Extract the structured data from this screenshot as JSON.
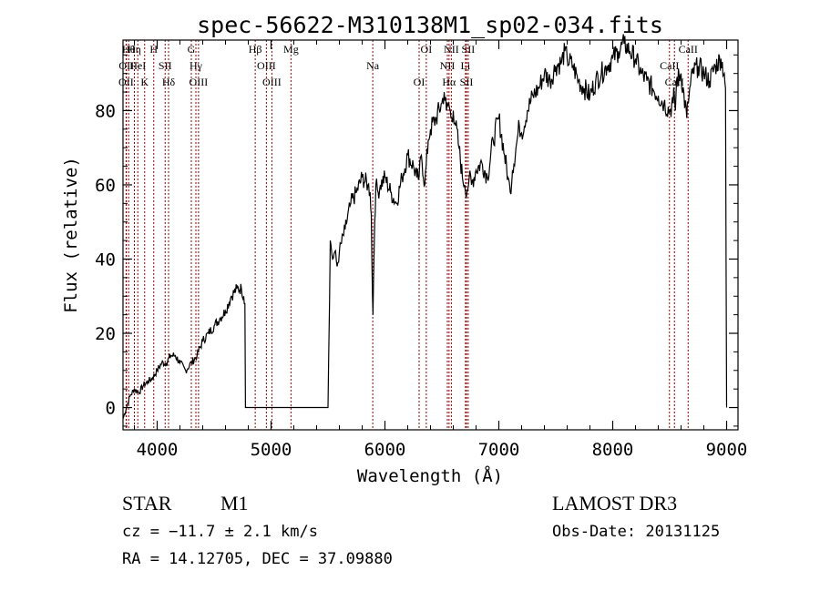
{
  "chart_data": {
    "type": "line",
    "title": "spec-56622-M310138M1_sp02-034.fits",
    "xlabel": "Wavelength (Å)",
    "ylabel": "Flux (relative)",
    "xlim": [
      3700,
      9100
    ],
    "ylim": [
      -6,
      99
    ],
    "x_ticks": [
      4000,
      5000,
      6000,
      7000,
      8000,
      9000
    ],
    "y_ticks": [
      0,
      20,
      40,
      60,
      80
    ],
    "x_tick_labels": [
      "4000",
      "5000",
      "6000",
      "7000",
      "8000",
      "9000"
    ],
    "y_tick_labels": [
      "0",
      "20",
      "40",
      "60",
      "80"
    ],
    "series": [
      {
        "name": "flux",
        "color": "#000000",
        "x": [
          3700,
          3730,
          3760,
          3800,
          3840,
          3880,
          3920,
          3960,
          4000,
          4040,
          4080,
          4120,
          4160,
          4200,
          4250,
          4300,
          4350,
          4400,
          4450,
          4500,
          4550,
          4600,
          4650,
          4700,
          4740,
          4760,
          4770,
          4775,
          4800,
          5000,
          5200,
          5400,
          5500,
          5520,
          5540,
          5560,
          5580,
          5600,
          5650,
          5700,
          5750,
          5800,
          5850,
          5870,
          5880,
          5890,
          5895,
          5900,
          5910,
          5920,
          5940,
          5960,
          6000,
          6050,
          6100,
          6150,
          6200,
          6250,
          6280,
          6300,
          6320,
          6350,
          6380,
          6400,
          6450,
          6500,
          6520,
          6540,
          6560,
          6580,
          6600,
          6620,
          6650,
          6680,
          6700,
          6720,
          6740,
          6760,
          6800,
          6850,
          6900,
          6950,
          7000,
          7050,
          7080,
          7100,
          7120,
          7150,
          7180,
          7200,
          7250,
          7300,
          7350,
          7400,
          7450,
          7500,
          7550,
          7580,
          7600,
          7650,
          7700,
          7750,
          7800,
          7850,
          7900,
          7950,
          8000,
          8050,
          8100,
          8150,
          8200,
          8250,
          8300,
          8350,
          8400,
          8450,
          8500,
          8530,
          8540,
          8550,
          8560,
          8600,
          8650,
          8660,
          8670,
          8700,
          8750,
          8800,
          8850,
          8900,
          8950,
          8980,
          8990,
          8995,
          9000
        ],
        "values": [
          -3,
          0,
          3,
          5,
          4,
          6,
          7,
          8,
          10,
          12,
          12,
          14,
          14,
          12,
          10,
          12,
          14,
          18,
          20,
          22,
          24,
          26,
          30,
          32,
          32,
          30,
          28,
          0,
          0,
          0,
          0,
          0,
          0,
          45,
          40,
          42,
          38,
          42,
          48,
          55,
          58,
          62,
          60,
          58,
          52,
          30,
          25,
          35,
          50,
          60,
          58,
          60,
          62,
          58,
          55,
          62,
          68,
          65,
          62,
          62,
          68,
          60,
          72,
          75,
          78,
          82,
          85,
          80,
          82,
          78,
          80,
          76,
          70,
          62,
          60,
          58,
          62,
          60,
          64,
          66,
          62,
          72,
          78,
          68,
          62,
          58,
          64,
          70,
          76,
          74,
          80,
          84,
          86,
          90,
          88,
          92,
          93,
          96,
          94,
          92,
          88,
          86,
          84,
          88,
          90,
          92,
          94,
          96,
          98,
          96,
          94,
          90,
          88,
          86,
          84,
          82,
          80,
          82,
          85,
          80,
          88,
          90,
          78,
          82,
          84,
          90,
          92,
          90,
          88,
          92,
          94,
          90,
          86,
          40,
          0
        ]
      }
    ],
    "lines": [
      {
        "x": 3750,
        "label": "Hθ"
      },
      {
        "x": 3730,
        "label": "OII"
      },
      {
        "x": 3727,
        "label": "OII"
      },
      {
        "x": 3800,
        "label": "Hη"
      },
      {
        "x": 3830,
        "label": "HeI"
      },
      {
        "x": 3890,
        "label": "K"
      },
      {
        "x": 3970,
        "label": "H"
      },
      {
        "x": 4070,
        "label": "SII"
      },
      {
        "x": 4100,
        "label": "Hδ"
      },
      {
        "x": 4300,
        "label": "G"
      },
      {
        "x": 4340,
        "label": "Hγ"
      },
      {
        "x": 4363,
        "label": "OIII"
      },
      {
        "x": 4861,
        "label": "Hβ"
      },
      {
        "x": 4959,
        "label": "OIII"
      },
      {
        "x": 5007,
        "label": "OIII"
      },
      {
        "x": 5175,
        "label": "Mg"
      },
      {
        "x": 5893,
        "label": "Na"
      },
      {
        "x": 6300,
        "label": "OI"
      },
      {
        "x": 6363,
        "label": "OI"
      },
      {
        "x": 6548,
        "label": "NII"
      },
      {
        "x": 6563,
        "label": "Hα"
      },
      {
        "x": 6583,
        "label": "NII"
      },
      {
        "x": 6707,
        "label": "Li"
      },
      {
        "x": 6716,
        "label": "SII"
      },
      {
        "x": 6731,
        "label": "SII"
      },
      {
        "x": 8498,
        "label": "CaII"
      },
      {
        "x": 8542,
        "label": "CaII"
      },
      {
        "x": 8662,
        "label": "CaII"
      }
    ],
    "line_color": "#990000"
  },
  "footer": {
    "object_class": "STAR",
    "subclass": "M1",
    "survey": "LAMOST DR3",
    "cz": "cz = −11.7 ± 2.1 km/s",
    "obs_date": "Obs-Date: 20131125",
    "coords": "RA =  14.12705, DEC =  37.09880"
  }
}
